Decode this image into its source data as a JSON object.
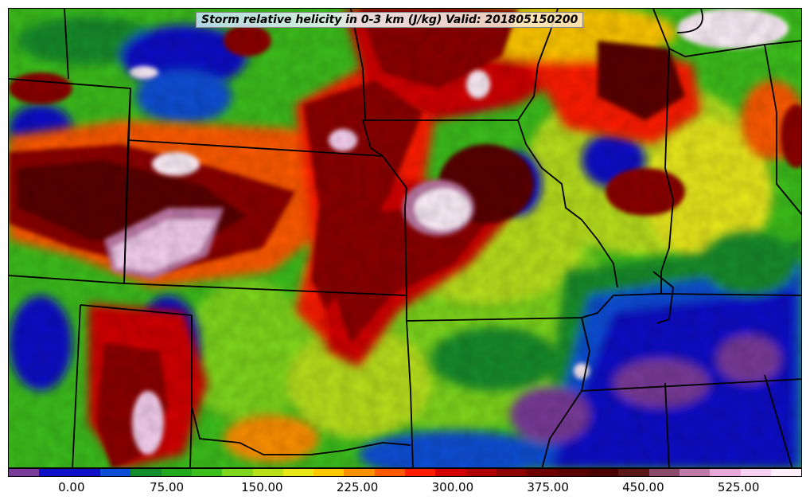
{
  "title": "Storm relative helicity in 0-3 km (J/kg) Valid: 201805150200",
  "colorbar": {
    "colors": [
      "#7a3a9a",
      "#1010c8",
      "#1010c8",
      "#0a4fd6",
      "#138c2c",
      "#22a81c",
      "#3cbf1c",
      "#7ed71c",
      "#b8e01a",
      "#e8e81a",
      "#ffc800",
      "#ff9000",
      "#ff5a00",
      "#ff1e00",
      "#d20000",
      "#b00000",
      "#8c0000",
      "#6e0000",
      "#5a0000",
      "#4a0000",
      "#5a1818",
      "#8a4a6a",
      "#c07aa8",
      "#e6a8d8",
      "#f6d0f0",
      "#fff0fa"
    ],
    "tick_labels": [
      "0.00",
      "75.00",
      "150.00",
      "225.00",
      "300.00",
      "375.00",
      "450.00",
      "525.00"
    ],
    "ticks": [
      0,
      75,
      150,
      225,
      300,
      375,
      450,
      525
    ],
    "range": [
      -50,
      575
    ]
  }
}
